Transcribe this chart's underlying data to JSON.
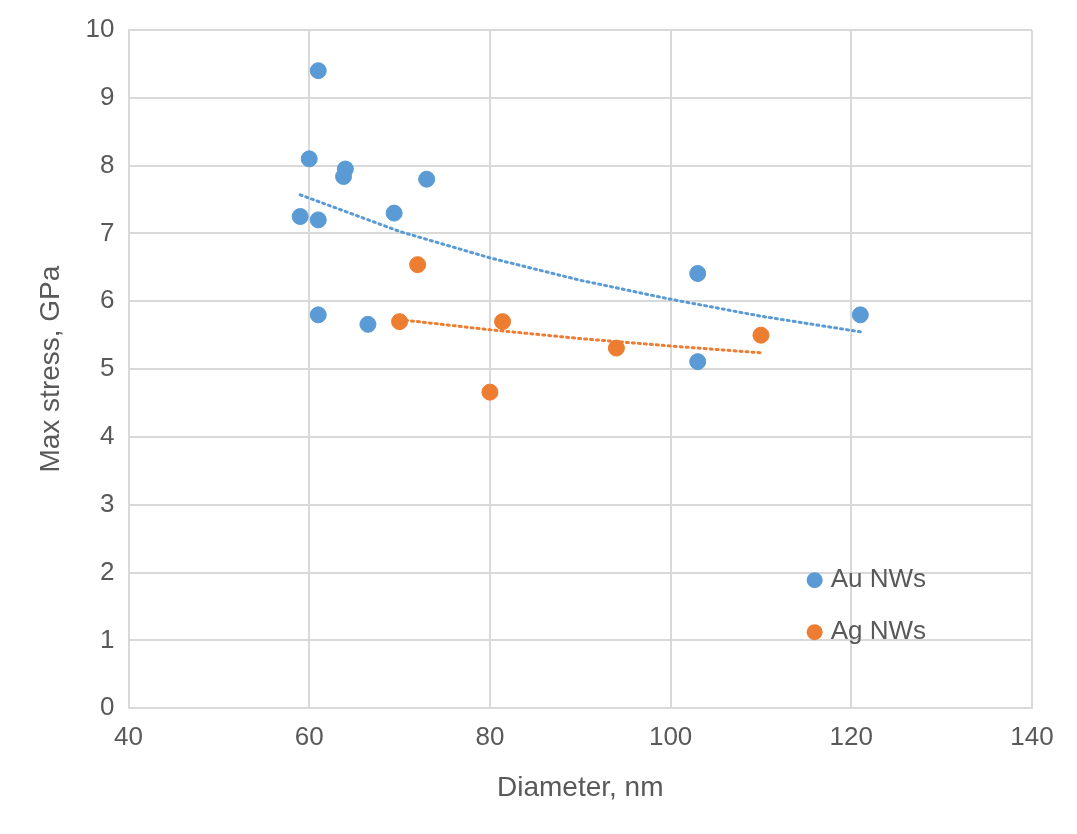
{
  "chart_data": {
    "type": "scatter",
    "xlabel": "Diameter, nm",
    "ylabel": "Max stress, GPa",
    "xlim": [
      40,
      140
    ],
    "xticks": [
      40,
      60,
      80,
      100,
      120,
      140
    ],
    "ylim": [
      0,
      10
    ],
    "yticks": [
      0,
      1,
      2,
      3,
      4,
      5,
      6,
      7,
      8,
      9,
      10
    ],
    "grid": true,
    "legend": "bottom right",
    "marker": "circle",
    "series": [
      {
        "name": "Au NWs",
        "color": "#5b9bd5",
        "x": [
          59,
          60,
          61,
          61,
          61,
          64,
          63.8,
          66.5,
          69.4,
          73,
          103,
          103,
          121
        ],
        "values": [
          7.25,
          8.1,
          9.4,
          7.2,
          5.8,
          7.95,
          7.84,
          5.66,
          7.3,
          7.8,
          6.41,
          5.11,
          5.8
        ]
      },
      {
        "name": "Ag NWs",
        "color": "#ed7d31",
        "x": [
          70,
          72,
          80,
          81.4,
          94,
          110
        ],
        "values": [
          5.7,
          6.54,
          4.66,
          5.7,
          5.31,
          5.5
        ]
      },
      {
        "type": "line",
        "marker": "none",
        "color": "#5b9bd5",
        "line_style": "dotted",
        "x": [
          59,
          70,
          80,
          90,
          100,
          110,
          121
        ],
        "values": [
          7.57,
          7.03,
          6.64,
          6.31,
          6.03,
          5.78,
          5.55
        ]
      },
      {
        "type": "line",
        "marker": "none",
        "color": "#ed7d31",
        "line_style": "dotted",
        "x": [
          70,
          80,
          90,
          100,
          110
        ],
        "values": [
          5.73,
          5.58,
          5.45,
          5.34,
          5.24
        ]
      }
    ]
  }
}
